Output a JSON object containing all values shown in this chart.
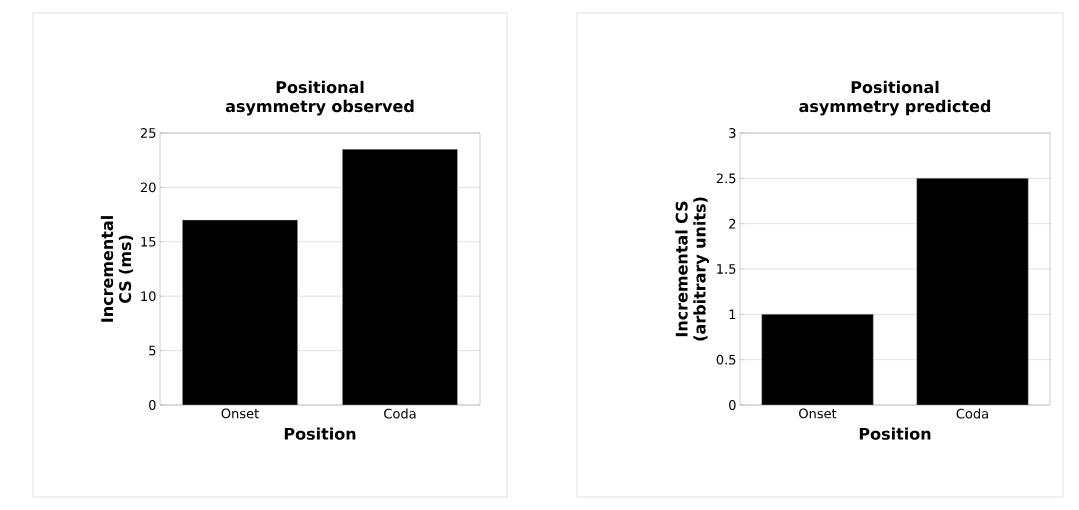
{
  "chart_data": [
    {
      "type": "bar",
      "title": "Positional asymmetry observed",
      "xlabel": "Position",
      "ylabel": "Incremental CS (ms)",
      "categories": [
        "Onset",
        "Coda"
      ],
      "values": [
        17,
        23.5
      ],
      "color": "#000000",
      "ylim": [
        0,
        25
      ],
      "yticks": [
        0,
        5,
        10,
        15,
        20,
        25
      ],
      "grid": "y"
    },
    {
      "type": "bar",
      "title": "Positional asymmetry predicted",
      "xlabel": "Position",
      "ylabel": "Incremental CS (arbitrary units)",
      "categories": [
        "Onset",
        "Coda"
      ],
      "values": [
        1,
        2.5
      ],
      "color": "#000000",
      "ylim": [
        0,
        3
      ],
      "yticks": [
        0,
        0.5,
        1,
        1.5,
        2,
        2.5,
        3
      ],
      "grid": "y"
    }
  ]
}
